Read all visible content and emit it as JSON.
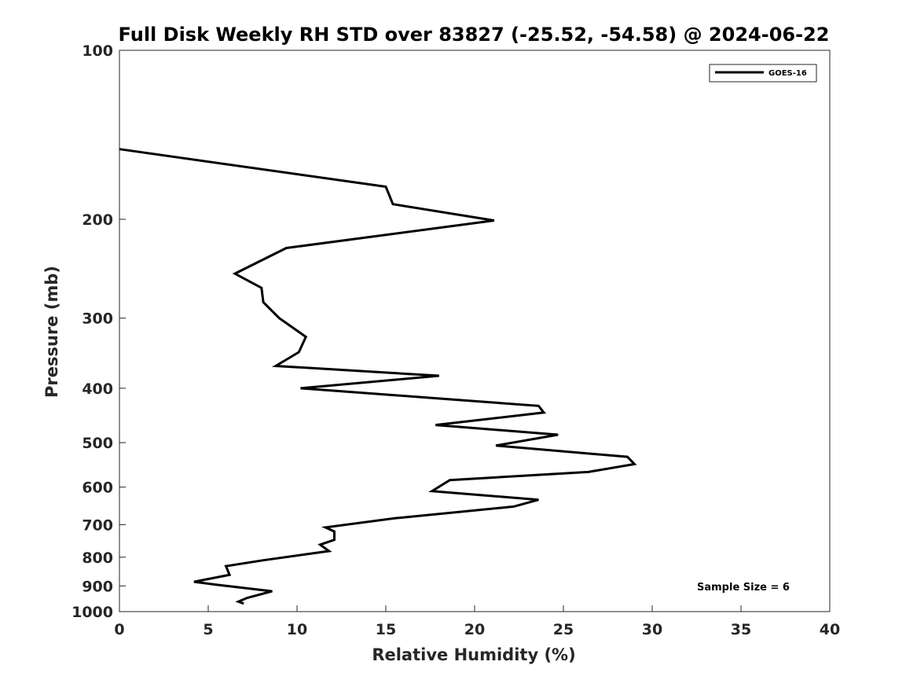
{
  "chart_data": {
    "type": "line",
    "title": "Full Disk Weekly RH STD over 83827 (-25.52, -54.58) @ 2024-06-22",
    "xlabel": "Relative Humidity (%)",
    "ylabel": "Pressure (mb)",
    "xlim": [
      0,
      40
    ],
    "ylim": [
      100,
      1000
    ],
    "y_scale": "log",
    "y_reversed": true,
    "xticks": [
      0,
      5,
      10,
      15,
      20,
      25,
      30,
      35,
      40
    ],
    "xtick_labels": [
      "0",
      "5",
      "10",
      "15",
      "20",
      "25",
      "30",
      "35",
      "40"
    ],
    "yticks": [
      100,
      200,
      300,
      400,
      500,
      600,
      700,
      800,
      900,
      1000
    ],
    "ytick_labels": [
      "100",
      "200",
      "300",
      "400",
      "500",
      "600",
      "700",
      "800",
      "900",
      "1000"
    ],
    "grid": false,
    "legend_position": "top-right",
    "series": [
      {
        "name": "GOES-16",
        "color": "#000000",
        "points": [
          [
            0.0,
            150
          ],
          [
            15.0,
            175
          ],
          [
            15.4,
            188
          ],
          [
            21.1,
            201
          ],
          [
            9.4,
            225
          ],
          [
            6.5,
            250
          ],
          [
            8.0,
            265
          ],
          [
            8.1,
            281
          ],
          [
            9.0,
            300
          ],
          [
            10.5,
            324
          ],
          [
            10.1,
            345
          ],
          [
            8.8,
            365
          ],
          [
            18.0,
            380
          ],
          [
            10.2,
            400
          ],
          [
            23.6,
            430
          ],
          [
            23.9,
            442
          ],
          [
            17.8,
            465
          ],
          [
            24.7,
            484
          ],
          [
            21.2,
            506
          ],
          [
            28.6,
            530
          ],
          [
            29.0,
            546
          ],
          [
            26.4,
            564
          ],
          [
            18.6,
            583
          ],
          [
            17.6,
            610
          ],
          [
            23.6,
            632
          ],
          [
            22.2,
            650
          ],
          [
            15.5,
            682
          ],
          [
            11.6,
            708
          ],
          [
            12.1,
            720
          ],
          [
            12.1,
            745
          ],
          [
            11.3,
            760
          ],
          [
            11.8,
            780
          ],
          [
            8.1,
            810
          ],
          [
            6.0,
            830
          ],
          [
            6.2,
            860
          ],
          [
            4.2,
            885
          ],
          [
            5.4,
            895
          ],
          [
            8.6,
            920
          ],
          [
            7.2,
            945
          ],
          [
            6.7,
            960
          ],
          [
            7.0,
            968
          ]
        ]
      }
    ],
    "annotation": "Sample Size = 6"
  }
}
